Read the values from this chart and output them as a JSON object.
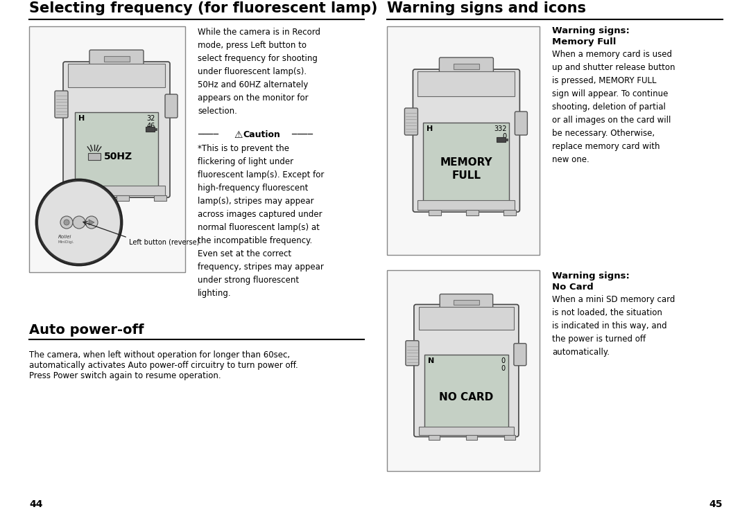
{
  "bg_color": "#ffffff",
  "page_width": 10.8,
  "page_height": 7.55,
  "left_title": "Selecting frequency (for fluorescent lamp)",
  "right_title": "Warning signs and icons",
  "auto_poweroff_title": "Auto power-off",
  "left_body_text": "While the camera is in Record\nmode, press Left button to\nselect frequency for shooting\nunder fluorescent lamp(s).\n50Hz and 60HZ alternately\nappears on the monitor for\nselection.",
  "caution_body": "*This is to prevent the\nflickering of light under\nfluorescent lamp(s). Except for\nhigh-frequency fluorescent\nlamp(s), stripes may appear\nacross images captured under\nnormal fluorescent lamp(s) at\nthe incompatible frequency.\nEven set at the correct\nfrequency, stripes may appear\nunder strong fluorescent\nlighting.",
  "auto_poweroff_body_line1": "The camera, when left without operation for longer than 60sec,",
  "auto_poweroff_body_line2": "automatically activates Auto power-off circuitry to turn power off.",
  "auto_poweroff_body_line3": "Press Power switch again to resume operation.",
  "warning_memory_title1": "Warning signs:",
  "warning_memory_title2": "Memory Full",
  "warning_memory_body": "When a memory card is used\nup and shutter release button\nis pressed, MEMORY FULL\nsign will appear. To continue\nshooting, deletion of partial\nor all images on the card will\nbe necessary. Otherwise,\nreplace memory card with\nnew one.",
  "warning_nocard_title1": "Warning signs:",
  "warning_nocard_title2": "No Card",
  "warning_nocard_body": "When a mini SD memory card\nis not loaded, the situation\nis indicated in this way, and\nthe power is turned off\nautomatically.",
  "page_num_left": "44",
  "page_num_right": "45",
  "left_btn_label": "Left button (reverse)",
  "screen_50hz": "50HZ",
  "screen_memory": "MEMORY\nFULL",
  "screen_nocard": "NO CARD"
}
